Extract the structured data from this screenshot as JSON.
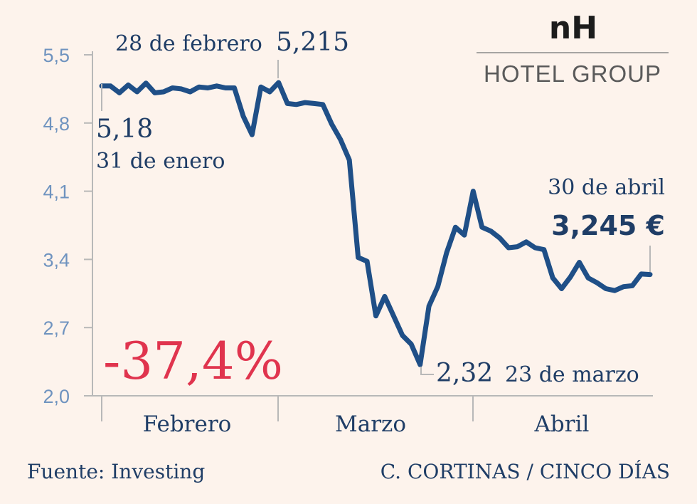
{
  "chart_data": {
    "type": "line",
    "ylim": [
      2.0,
      5.5
    ],
    "yticks": [
      "5,5",
      "4,8",
      "4,1",
      "3,4",
      "2,7",
      "2,0"
    ],
    "ytick_values": [
      5.5,
      4.8,
      4.1,
      3.4,
      2.7,
      2.0
    ],
    "months": [
      "Febrero",
      "Marzo",
      "Abril"
    ],
    "series": [
      {
        "values": [
          5.18,
          5.18,
          5.11,
          5.19,
          5.12,
          5.21,
          5.11,
          5.12,
          5.16,
          5.15,
          5.12,
          5.17,
          5.16,
          5.18,
          5.16,
          5.16,
          4.87,
          4.68,
          5.17,
          5.12,
          5.215,
          5.0,
          4.99,
          5.01,
          5.0,
          4.99,
          4.79,
          4.63,
          4.42,
          3.42,
          3.38,
          2.82,
          3.02,
          2.82,
          2.62,
          2.53,
          2.32,
          2.92,
          3.12,
          3.47,
          3.73,
          3.65,
          4.1,
          3.73,
          3.69,
          3.62,
          3.52,
          3.53,
          3.58,
          3.52,
          3.5,
          3.21,
          3.1,
          3.22,
          3.37,
          3.21,
          3.16,
          3.1,
          3.08,
          3.12,
          3.13,
          3.25,
          3.245
        ],
        "color": "#1f4f87"
      }
    ],
    "annotations": {
      "start_value": "5,18",
      "start_date": "31 de enero",
      "peak_date": "28 de febrero",
      "peak_value": "5,215",
      "low_value": "2,32",
      "low_date": "23 de marzo",
      "end_date": "30 de abril",
      "end_value": "3,245 €",
      "change": "-37,4%"
    }
  },
  "logo": {
    "top": "nH",
    "bottom": "HOTEL GROUP"
  },
  "footer": {
    "source": "Fuente: Investing",
    "credit": "C. CORTINAS / CINCO DÍAS"
  }
}
